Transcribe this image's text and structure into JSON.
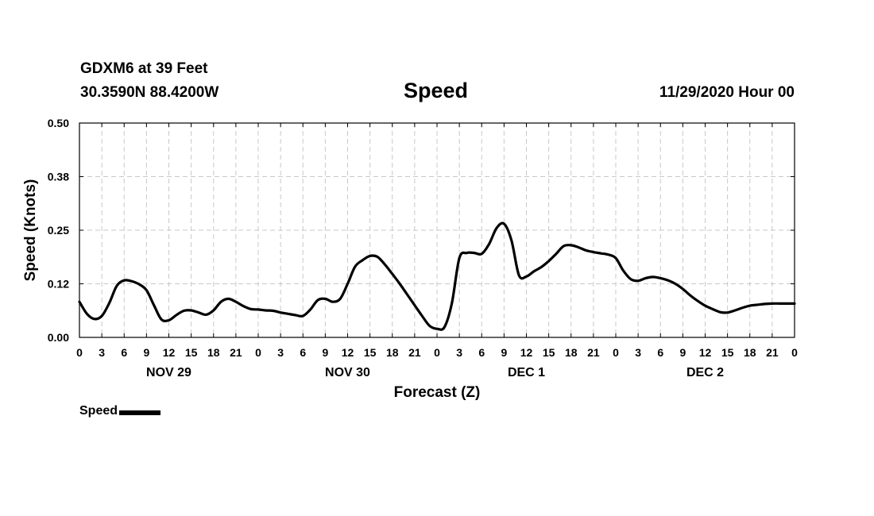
{
  "header": {
    "station": "GDXM6 at 39 Feet",
    "coords": "30.3590N 88.4200W",
    "title": "Speed",
    "run_time": "11/29/2020 Hour 00"
  },
  "legend": {
    "label": "Speed"
  },
  "chart_data": {
    "type": "line",
    "title": "Speed",
    "xlabel": "Forecast (Z)",
    "ylabel": "Speed (Knots)",
    "xlim": [
      0,
      96
    ],
    "ylim": [
      0,
      0.5
    ],
    "y_ticks": [
      "0.00",
      "0.12",
      "0.25",
      "0.38",
      "0.50"
    ],
    "y_tick_values": [
      0,
      0.125,
      0.25,
      0.375,
      0.5
    ],
    "x_ticks": [
      "0",
      "3",
      "6",
      "9",
      "12",
      "15",
      "18",
      "21",
      "0",
      "3",
      "6",
      "9",
      "12",
      "15",
      "18",
      "21",
      "0",
      "3",
      "6",
      "9",
      "12",
      "15",
      "18",
      "21",
      "0",
      "3",
      "6",
      "9",
      "12",
      "15",
      "18",
      "21",
      "0"
    ],
    "x_tick_step_hours": 3,
    "day_labels": [
      {
        "text": "NOV 29",
        "hour": 12
      },
      {
        "text": "NOV 30",
        "hour": 36
      },
      {
        "text": "DEC 1",
        "hour": 60
      },
      {
        "text": "DEC 2",
        "hour": 84
      }
    ],
    "grid": true,
    "series": [
      {
        "name": "Speed",
        "x": [
          0,
          1,
          2,
          3,
          4,
          5,
          6,
          7,
          8,
          9,
          10,
          11,
          12,
          13,
          14,
          15,
          16,
          17,
          18,
          19,
          20,
          21,
          22,
          23,
          24,
          25,
          26,
          27,
          28,
          29,
          30,
          31,
          32,
          33,
          34,
          35,
          36,
          37,
          38,
          39,
          40,
          41,
          42,
          43,
          44,
          45,
          46,
          47,
          48,
          49,
          50,
          51,
          52,
          53,
          54,
          55,
          56,
          57,
          58,
          59,
          60,
          61,
          62,
          63,
          64,
          65,
          66,
          67,
          68,
          69,
          70,
          71,
          72,
          73,
          74,
          75,
          76,
          77,
          78,
          79,
          80,
          81,
          82,
          83,
          84,
          85,
          86,
          87,
          88,
          89,
          90,
          91,
          92,
          93,
          94,
          95,
          96
        ],
        "values": [
          0.083,
          0.055,
          0.043,
          0.05,
          0.08,
          0.12,
          0.133,
          0.131,
          0.124,
          0.11,
          0.075,
          0.042,
          0.04,
          0.052,
          0.062,
          0.063,
          0.058,
          0.053,
          0.063,
          0.083,
          0.09,
          0.083,
          0.073,
          0.066,
          0.065,
          0.063,
          0.062,
          0.058,
          0.055,
          0.052,
          0.05,
          0.065,
          0.087,
          0.09,
          0.083,
          0.09,
          0.125,
          0.165,
          0.18,
          0.19,
          0.188,
          0.17,
          0.148,
          0.125,
          0.1,
          0.075,
          0.05,
          0.027,
          0.02,
          0.024,
          0.08,
          0.185,
          0.197,
          0.197,
          0.195,
          0.218,
          0.255,
          0.265,
          0.226,
          0.145,
          0.142,
          0.154,
          0.164,
          0.178,
          0.195,
          0.213,
          0.215,
          0.21,
          0.203,
          0.199,
          0.196,
          0.193,
          0.185,
          0.156,
          0.136,
          0.132,
          0.138,
          0.141,
          0.138,
          0.133,
          0.125,
          0.113,
          0.098,
          0.085,
          0.074,
          0.066,
          0.059,
          0.058,
          0.063,
          0.069,
          0.074,
          0.076,
          0.078,
          0.079,
          0.079,
          0.079,
          0.079
        ]
      }
    ]
  }
}
